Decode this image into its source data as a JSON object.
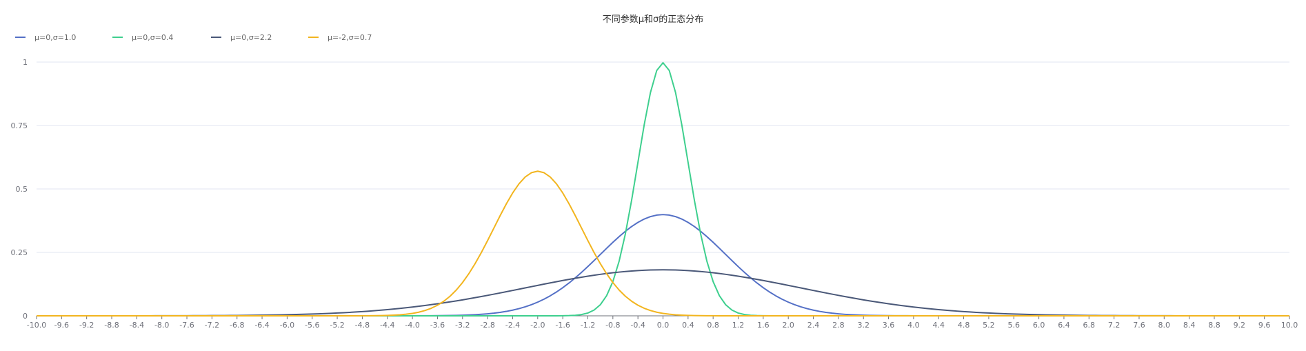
{
  "chart_data": {
    "type": "line",
    "title": "不同参数μ和σ的正态分布",
    "xlabel": "",
    "ylabel": "",
    "xlim": [
      -10,
      10
    ],
    "ylim": [
      0,
      1
    ],
    "x_step": 0.1,
    "x_tick_interval": 0.4,
    "y_ticks": [
      0,
      0.25,
      0.5,
      0.75,
      1
    ],
    "y_tick_labels": [
      "0",
      "0.25",
      "0.5",
      "0.75",
      "1"
    ],
    "grid": true,
    "legend_position": "top-left",
    "series": [
      {
        "name": "μ=0,σ=1.0",
        "mu": 0,
        "sigma": 1.0,
        "color": "#5470c6"
      },
      {
        "name": "μ=0,σ=0.4",
        "mu": 0,
        "sigma": 0.4,
        "color": "#3ecf8e"
      },
      {
        "name": "μ=0,σ=2.2",
        "mu": 0,
        "sigma": 2.2,
        "color": "#4a5878"
      },
      {
        "name": "μ=-2,σ=0.7",
        "mu": -2,
        "sigma": 0.7,
        "color": "#f2b51f"
      }
    ]
  }
}
